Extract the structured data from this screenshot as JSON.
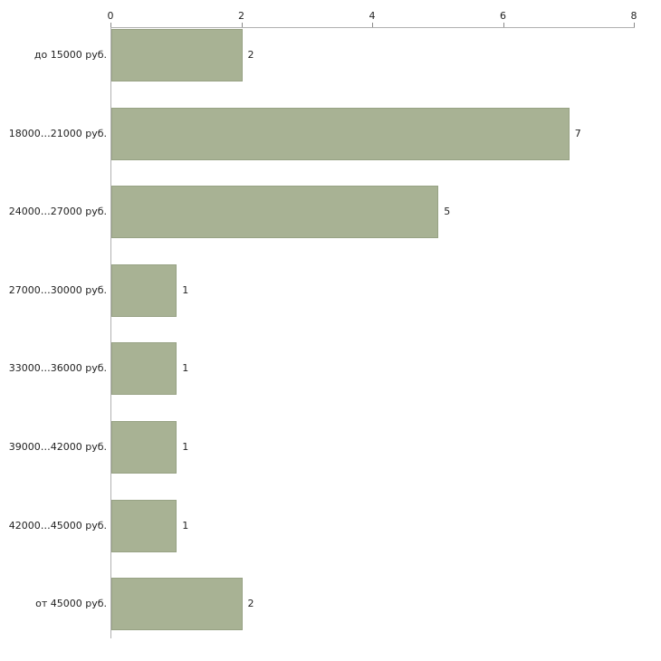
{
  "chart_data": {
    "type": "bar",
    "orientation": "horizontal",
    "title": "",
    "xlabel": "",
    "ylabel": "",
    "categories": [
      "до 15000 руб.",
      "18000…21000 руб.",
      "24000…27000 руб.",
      "27000…30000 руб.",
      "33000…36000 руб.",
      "39000…42000 руб.",
      "42000…45000 руб.",
      "от 45000 руб."
    ],
    "values": [
      2,
      7,
      5,
      1,
      1,
      1,
      1,
      2
    ],
    "value_labels": [
      "2",
      "7",
      "5",
      "1",
      "1",
      "1",
      "1",
      "2"
    ],
    "x_ticks": [
      "0",
      "2",
      "4",
      "6",
      "8"
    ],
    "xlim": [
      0,
      8
    ],
    "grid": false,
    "legend": false,
    "colors": {
      "bar_fill": "#a8b294",
      "bar_border": "#97a284",
      "axis_line": "#b0b0b0",
      "tick_mark": "#8a8a8a",
      "text": "#222222",
      "background": "#ffffff"
    }
  }
}
